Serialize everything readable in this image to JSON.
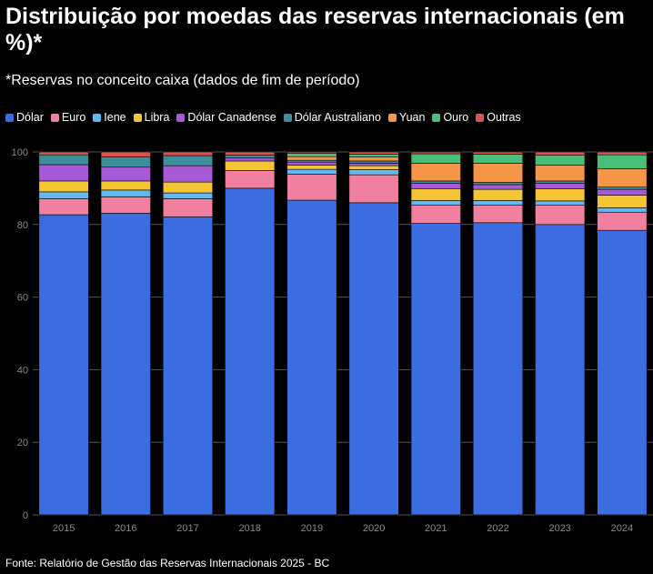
{
  "title": "Distribuição por moedas das reservas internacionais (em %)*",
  "subtitle": "*Reservas no conceito caixa (dados de fim de período)",
  "source": "Fonte: Relatório de Gestão das Reservas Internacionais 2025 - BC",
  "chart_data": {
    "type": "bar",
    "stacked": true,
    "categories": [
      "2015",
      "2016",
      "2017",
      "2018",
      "2019",
      "2020",
      "2021",
      "2022",
      "2023",
      "2024"
    ],
    "ylim": [
      0,
      100
    ],
    "yticks": [
      0,
      20,
      40,
      60,
      80,
      100
    ],
    "grid": true,
    "legend_position": "top",
    "series": [
      {
        "name": "Dólar",
        "color": "#3b6ce0",
        "values": [
          82.7,
          83.1,
          82.1,
          90.0,
          86.7,
          86.0,
          80.3,
          80.5,
          80.0,
          78.4
        ]
      },
      {
        "name": "Euro",
        "color": "#f07fa0",
        "values": [
          4.4,
          4.5,
          5.0,
          4.9,
          7.2,
          7.7,
          5.0,
          4.8,
          5.3,
          5.0
        ]
      },
      {
        "name": "Iene",
        "color": "#62b8f0",
        "values": [
          1.9,
          1.9,
          1.6,
          0.0,
          1.3,
          1.4,
          1.3,
          1.3,
          1.2,
          1.2
        ]
      },
      {
        "name": "Libra",
        "color": "#f5c433",
        "values": [
          3.0,
          2.5,
          3.0,
          2.6,
          1.2,
          1.1,
          3.3,
          3.1,
          3.3,
          3.5
        ]
      },
      {
        "name": "Dólar Canadense",
        "color": "#a75ad8",
        "values": [
          4.5,
          3.8,
          4.5,
          0.8,
          0.8,
          0.7,
          1.5,
          1.3,
          1.6,
          1.6
        ]
      },
      {
        "name": "Dólar Australiano",
        "color": "#3c8e99",
        "values": [
          2.7,
          2.8,
          2.8,
          0.8,
          0.5,
          0.6,
          0.6,
          0.6,
          0.6,
          0.6
        ]
      },
      {
        "name": "Yuan",
        "color": "#f59548",
        "values": [
          0.0,
          0.0,
          0.0,
          0.0,
          1.0,
          1.1,
          4.9,
          5.3,
          4.4,
          5.1
        ]
      },
      {
        "name": "Ouro",
        "color": "#48c07a",
        "values": [
          0.0,
          0.0,
          0.0,
          0.0,
          0.9,
          0.8,
          2.6,
          2.5,
          2.7,
          3.8
        ]
      },
      {
        "name": "Outras",
        "color": "#e2504e",
        "values": [
          0.8,
          1.4,
          1.0,
          0.9,
          0.4,
          0.6,
          0.5,
          0.6,
          0.9,
          0.8
        ]
      }
    ]
  }
}
